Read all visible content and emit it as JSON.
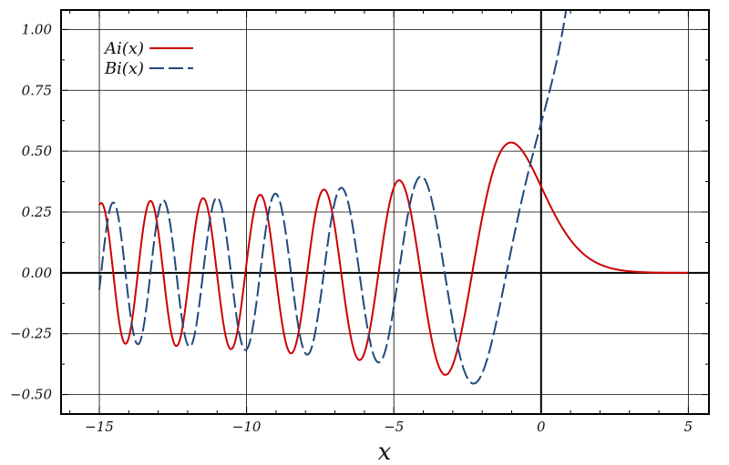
{
  "chart_data": {
    "type": "line",
    "title": "",
    "xlabel": "x",
    "ylabel": "",
    "xlim": [
      -16.3,
      5.7
    ],
    "ylim": [
      -0.58,
      1.08
    ],
    "x_ticks": [
      {
        "value": -15,
        "label": "−15"
      },
      {
        "value": -10,
        "label": "−10"
      },
      {
        "value": -5,
        "label": "−5"
      },
      {
        "value": 0,
        "label": "0"
      },
      {
        "value": 5,
        "label": "5"
      }
    ],
    "y_ticks": [
      {
        "value": 1.0,
        "label": "1.00"
      },
      {
        "value": 0.75,
        "label": "0.75"
      },
      {
        "value": 0.5,
        "label": "0.50"
      },
      {
        "value": 0.25,
        "label": "0.25"
      },
      {
        "value": 0.0,
        "label": "0.00"
      },
      {
        "value": -0.25,
        "label": "−0.25"
      },
      {
        "value": -0.5,
        "label": "−0.50"
      }
    ],
    "grid": true,
    "legend_position": "top-left",
    "series": [
      {
        "name": "Ai(x)",
        "color": "#cc0000",
        "dash": "solid",
        "x_range": [
          -15,
          5
        ],
        "points": [
          [
            -15,
            0.29
          ],
          [
            -14.75,
            0.16
          ],
          [
            -14.5,
            -0.05
          ],
          [
            -14.25,
            -0.24
          ],
          [
            -14.0,
            -0.28
          ],
          [
            -13.75,
            -0.17
          ],
          [
            -13.25,
            0.29
          ],
          [
            -12.25,
            -0.3
          ],
          [
            -11.5,
            0.3
          ],
          [
            -10.8,
            -0.31
          ],
          [
            -9.5,
            0.32
          ],
          [
            -8.5,
            -0.33
          ],
          [
            -7.4,
            0.34
          ],
          [
            -6.1,
            -0.36
          ],
          [
            -4.85,
            0.38
          ],
          [
            -3.25,
            -0.42
          ],
          [
            -1.02,
            0.536
          ],
          [
            0,
            0.355
          ],
          [
            1,
            0.135
          ],
          [
            2,
            0.035
          ],
          [
            3,
            0.007
          ],
          [
            4,
            0.001
          ],
          [
            5,
            0.0001
          ]
        ]
      },
      {
        "name": "Bi(x)",
        "color": "#1f497d",
        "dash": "long-dash",
        "x_range": [
          -15,
          0.9
        ],
        "points": [
          [
            -15,
            -0.06
          ],
          [
            -14.4,
            0.29
          ],
          [
            -13.6,
            -0.29
          ],
          [
            -12.8,
            0.3
          ],
          [
            -11.9,
            -0.3
          ],
          [
            -11.0,
            0.31
          ],
          [
            -10.0,
            -0.32
          ],
          [
            -8.9,
            0.33
          ],
          [
            -8.0,
            -0.34
          ],
          [
            -6.75,
            0.35
          ],
          [
            -5.5,
            -0.37
          ],
          [
            -4.1,
            0.395
          ],
          [
            -2.3,
            -0.455
          ],
          [
            0,
            0.615
          ],
          [
            0.9,
            1.08
          ]
        ]
      }
    ]
  }
}
